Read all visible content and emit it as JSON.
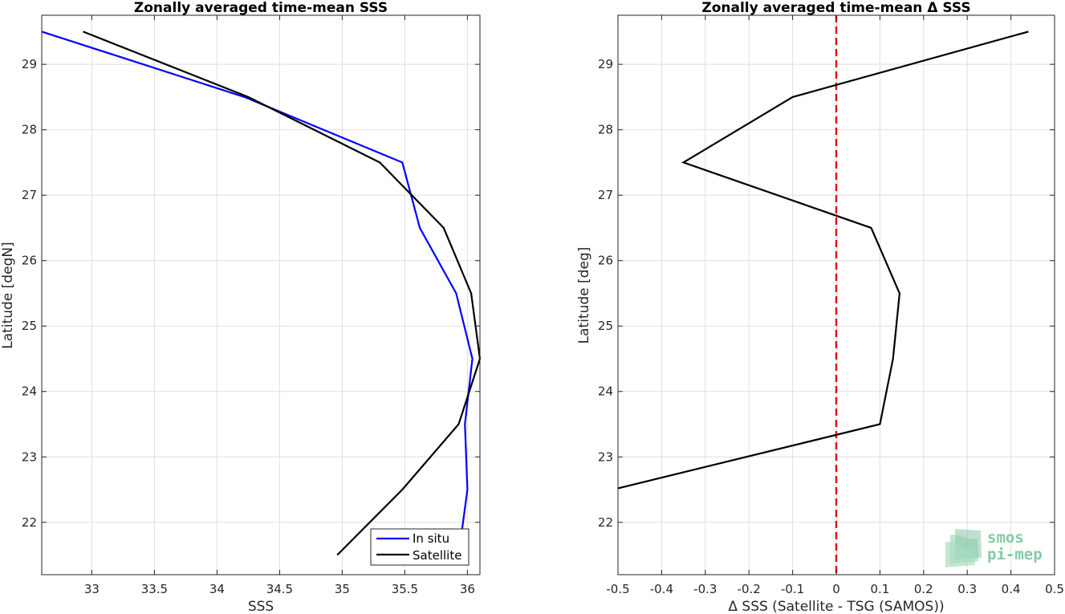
{
  "chart_data": [
    {
      "type": "line",
      "title": "Zonally averaged time-mean SSS",
      "xlabel": "SSS",
      "ylabel": "Latitude [degN]",
      "xlim": [
        32.6,
        36.1
      ],
      "ylim": [
        21.2,
        29.75
      ],
      "xticks": [
        33,
        33.5,
        34,
        34.5,
        35,
        35.5,
        36
      ],
      "xtick_labels": [
        "33",
        "33.5",
        "34",
        "34.5",
        "35",
        "35.5",
        "36"
      ],
      "yticks": [
        22,
        23,
        24,
        25,
        26,
        27,
        28,
        29
      ],
      "ytick_labels": [
        "22",
        "23",
        "24",
        "25",
        "26",
        "27",
        "28",
        "29"
      ],
      "grid": true,
      "legend": {
        "position": "bottom-right",
        "entries": [
          "In situ",
          "Satellite"
        ]
      },
      "series": [
        {
          "name": "In situ",
          "color": "#0000ff",
          "points": [
            [
              35.93,
              21.5
            ],
            [
              36.0,
              22.5
            ],
            [
              35.98,
              23.5
            ],
            [
              36.04,
              24.5
            ],
            [
              35.91,
              25.5
            ],
            [
              35.62,
              26.5
            ],
            [
              35.48,
              27.5
            ],
            [
              34.22,
              28.5
            ],
            [
              32.6,
              29.5
            ]
          ]
        },
        {
          "name": "Satellite",
          "color": "#000000",
          "points": [
            [
              34.96,
              21.5
            ],
            [
              35.48,
              22.5
            ],
            [
              35.93,
              23.5
            ],
            [
              36.1,
              24.5
            ],
            [
              36.03,
              25.5
            ],
            [
              35.81,
              26.5
            ],
            [
              35.3,
              27.5
            ],
            [
              34.25,
              28.5
            ],
            [
              32.93,
              29.5
            ]
          ]
        }
      ]
    },
    {
      "type": "line",
      "title": "Zonally averaged time-mean Δ SSS",
      "xlabel": "Δ SSS (Satellite - TSG (SAMOS))",
      "ylabel": "Latitude [deg]",
      "xlim": [
        -0.5,
        0.5
      ],
      "ylim": [
        21.2,
        29.75
      ],
      "xticks": [
        -0.5,
        -0.4,
        -0.3,
        -0.2,
        -0.1,
        0,
        0.1,
        0.2,
        0.3,
        0.4,
        0.5
      ],
      "xtick_labels": [
        "-0.5",
        "-0.4",
        "-0.3",
        "-0.2",
        "-0.1",
        "0",
        "0.1",
        "0.2",
        "0.3",
        "0.4",
        "0.5"
      ],
      "yticks": [
        22,
        23,
        24,
        25,
        26,
        27,
        28,
        29
      ],
      "ytick_labels": [
        "22",
        "23",
        "24",
        "25",
        "26",
        "27",
        "28",
        "29"
      ],
      "grid": true,
      "reference_line": {
        "x": 0,
        "color": "#e8000b",
        "style": "dashed"
      },
      "series": [
        {
          "color": "#000000",
          "points": [
            [
              -0.5,
              22.52
            ],
            [
              0.1,
              23.5
            ],
            [
              0.13,
              24.5
            ],
            [
              0.145,
              25.5
            ],
            [
              0.08,
              26.5
            ],
            [
              -0.35,
              27.5
            ],
            [
              -0.1,
              28.5
            ],
            [
              0.44,
              29.5
            ]
          ]
        }
      ]
    }
  ],
  "logo": {
    "line1": "smos",
    "line2": "pi-mep"
  }
}
